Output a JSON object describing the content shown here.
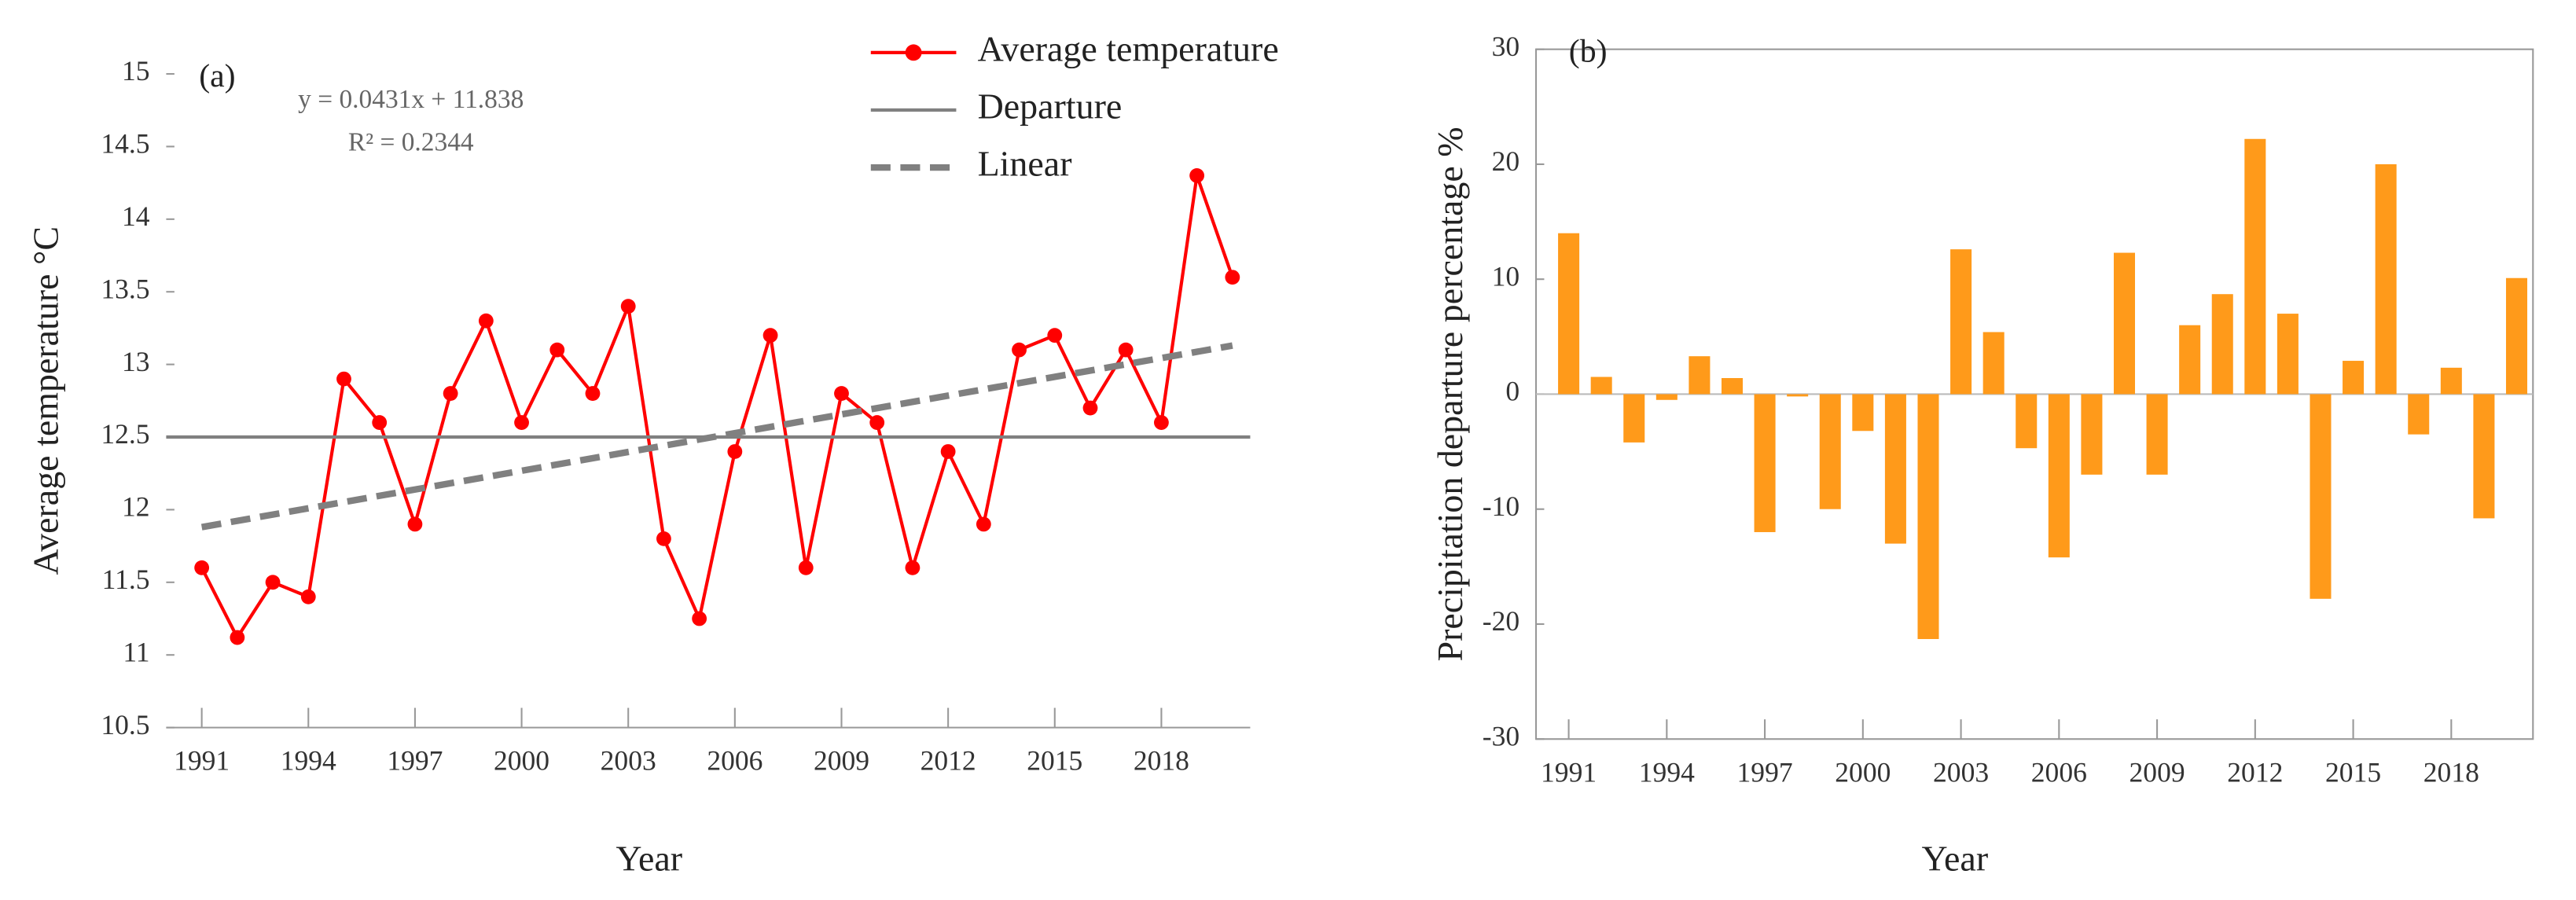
{
  "chart_data": [
    {
      "type": "line",
      "label": "(a)",
      "ylabel": "Average temperature °C",
      "xlabel": "Year",
      "annotations": [
        "y = 0.0431x + 11.838",
        "R² = 0.2344"
      ],
      "xlim": [
        1990,
        2020.5
      ],
      "xticks": [
        1991,
        1994,
        1997,
        2000,
        2003,
        2006,
        2009,
        2012,
        2015,
        2018
      ],
      "ylim": [
        10.5,
        15
      ],
      "yticks": [
        10.5,
        11,
        11.5,
        12,
        12.5,
        13,
        13.5,
        14,
        14.5,
        15
      ],
      "legend": "upper right",
      "series": [
        {
          "name": "Average temperature",
          "color": "#ff0000",
          "marker": true,
          "x": [
            1991,
            1992,
            1993,
            1994,
            1995,
            1996,
            1997,
            1998,
            1999,
            2000,
            2001,
            2002,
            2003,
            2004,
            2005,
            2006,
            2007,
            2008,
            2009,
            2010,
            2011,
            2012,
            2013,
            2014,
            2015,
            2016,
            2017,
            2018,
            2019,
            2020
          ],
          "values": [
            11.6,
            11.12,
            11.5,
            11.4,
            12.9,
            12.6,
            11.9,
            12.8,
            13.3,
            12.6,
            13.1,
            12.8,
            13.4,
            11.8,
            11.25,
            12.4,
            13.2,
            11.6,
            12.8,
            12.6,
            11.6,
            12.4,
            11.9,
            13.1,
            13.2,
            12.7,
            13.1,
            12.6,
            14.3,
            13.6
          ]
        },
        {
          "name": "Departure",
          "color": "#808080",
          "x": [
            1990,
            2020.5
          ],
          "values": [
            12.5,
            12.5
          ]
        },
        {
          "name": "Linear",
          "color": "#808080",
          "dashed": true,
          "x": [
            1991,
            2020
          ],
          "values": [
            11.88,
            13.13
          ]
        }
      ]
    },
    {
      "type": "bar",
      "label": "(b)",
      "ylabel": "Precipitation departure percentage %",
      "xlabel": "Year",
      "xlim": [
        1990,
        2020.5
      ],
      "xticks": [
        1991,
        1994,
        1997,
        2000,
        2003,
        2006,
        2009,
        2012,
        2015,
        2018
      ],
      "ylim": [
        -30,
        30
      ],
      "yticks": [
        -30,
        -20,
        -10,
        0,
        10,
        20,
        30
      ],
      "color": "#ff9a1a",
      "x": [
        1991,
        1992,
        1993,
        1994,
        1995,
        1996,
        1997,
        1998,
        1999,
        2000,
        2001,
        2002,
        2003,
        2004,
        2005,
        2006,
        2007,
        2008,
        2009,
        2010,
        2011,
        2012,
        2013,
        2014,
        2015,
        2016,
        2017,
        2018,
        2019,
        2020
      ],
      "values": [
        14,
        1.5,
        -4.2,
        -0.5,
        3.3,
        1.4,
        -12,
        -0.2,
        -10,
        -3.2,
        -13,
        -21.3,
        12.6,
        5.4,
        -4.7,
        -14.2,
        -7,
        12.3,
        -7,
        6,
        8.7,
        22.2,
        7,
        -17.8,
        2.9,
        20,
        -3.5,
        2.3,
        -10.8,
        10.1
      ]
    }
  ]
}
